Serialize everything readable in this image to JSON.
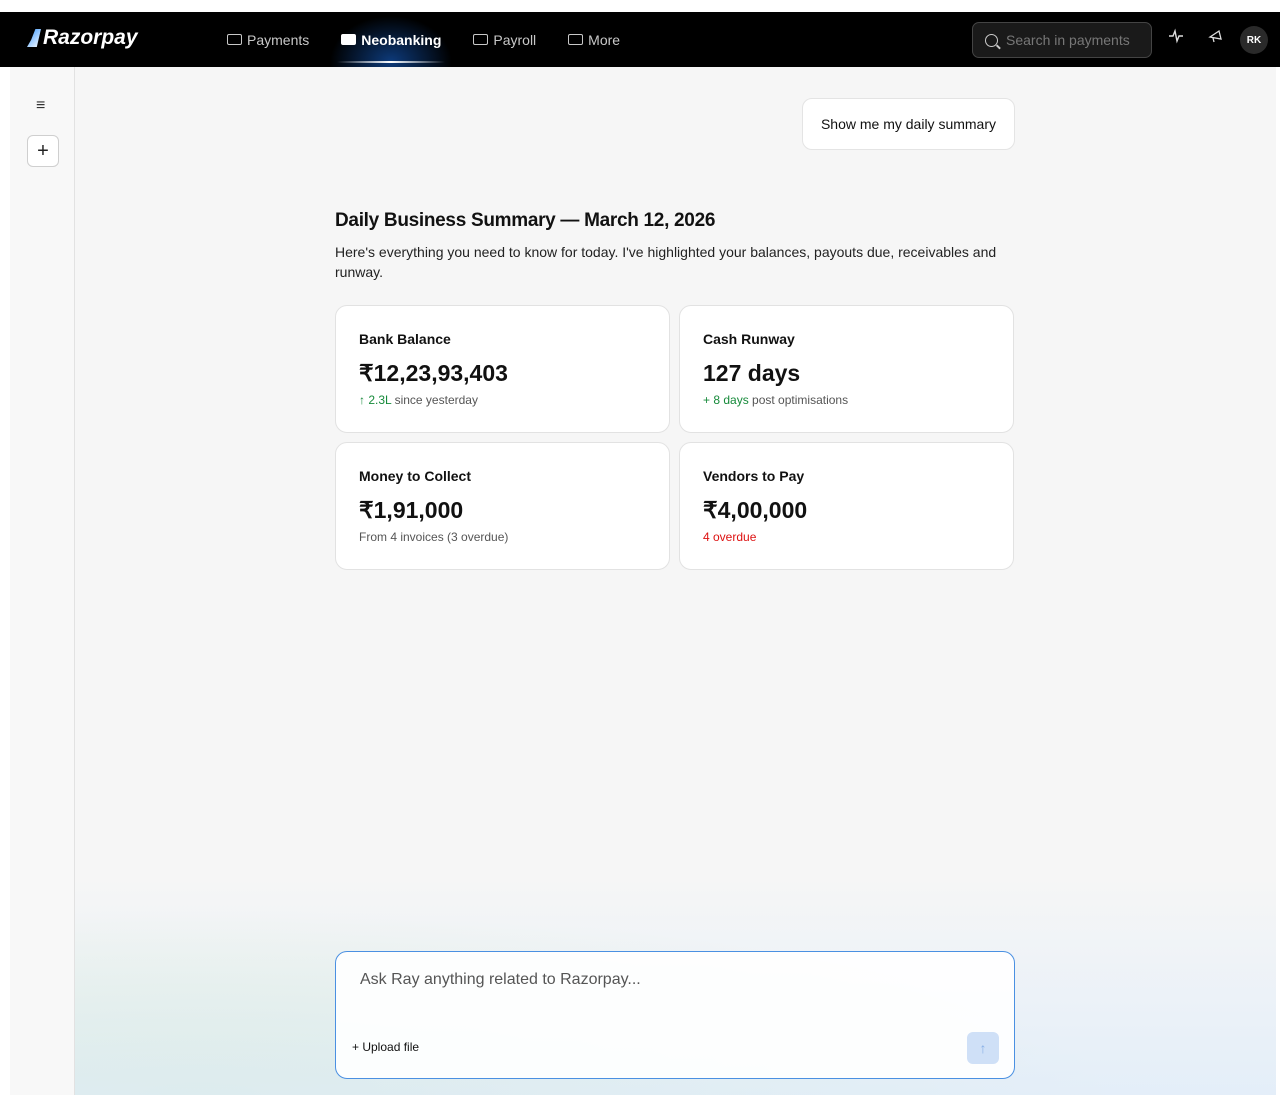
{
  "brand": "Razorpay",
  "nav": [
    {
      "label": "Payments",
      "active": false
    },
    {
      "label": "Neobanking",
      "active": true
    },
    {
      "label": "Payroll",
      "active": false
    },
    {
      "label": "More",
      "active": false
    }
  ],
  "search": {
    "placeholder": "Search in payments"
  },
  "user": {
    "initials": "RK"
  },
  "chat": {
    "user_message": "Show me my daily summary",
    "title": "Daily Business Summary — March 12, 2026",
    "description": "Here's everything you need to know for today. I've highlighted your balances, payouts due, receivables and runway.",
    "cards": [
      {
        "label": "Bank Balance",
        "value": "₹12,23,93,403",
        "sub_highlight": "↑ 2.3L",
        "sub_rest": " since yesterday"
      },
      {
        "label": "Cash Runway",
        "value": "127 days",
        "sub_highlight": "+ 8 days",
        "sub_rest": " post optimisations"
      },
      {
        "label": "Money to Collect",
        "value": "₹1,91,000",
        "sub_highlight": "",
        "sub_rest": "From 4 invoices (3 overdue)"
      },
      {
        "label": "Vendors to Pay",
        "value": "₹4,00,000",
        "sub_highlight": "4 overdue",
        "sub_rest": ""
      }
    ]
  },
  "composer": {
    "placeholder": "Ask Ray anything related to Razorpay...",
    "upload_label": "Upload file"
  },
  "colors": {
    "accent": "#4a90e2",
    "positive": "#168a3a",
    "negative": "#dd1111"
  }
}
